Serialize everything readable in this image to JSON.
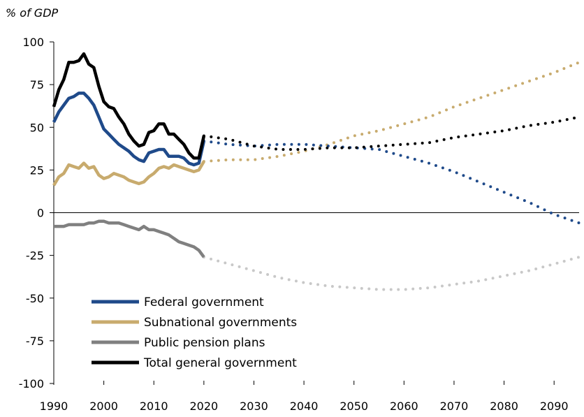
{
  "colors": {
    "federal": "#1f4a8a",
    "subnational": "#c8ab6e",
    "pension": "#808080",
    "pension_projection": "#c8c8c8",
    "total": "#000000",
    "axis": "#000000"
  },
  "chart_data": {
    "type": "line",
    "unit_label": "% of GDP",
    "xlim": [
      1990,
      2095
    ],
    "ylim": [
      -100,
      100
    ],
    "x_ticks": [
      1990,
      2000,
      2010,
      2020,
      2030,
      2040,
      2050,
      2060,
      2070,
      2080,
      2090
    ],
    "y_ticks": [
      100,
      75,
      50,
      25,
      0,
      -25,
      -50,
      -75,
      -100
    ],
    "legend_position": "bottom-left",
    "grid": false,
    "series": [
      {
        "key": "federal",
        "name": "Federal government",
        "historical": [
          [
            1990,
            53
          ],
          [
            1991,
            59
          ],
          [
            1992,
            63
          ],
          [
            1993,
            67
          ],
          [
            1994,
            68
          ],
          [
            1995,
            70
          ],
          [
            1996,
            70
          ],
          [
            1997,
            67
          ],
          [
            1998,
            63
          ],
          [
            1999,
            56
          ],
          [
            2000,
            49
          ],
          [
            2001,
            46
          ],
          [
            2002,
            43
          ],
          [
            2003,
            40
          ],
          [
            2004,
            38
          ],
          [
            2005,
            36
          ],
          [
            2006,
            33
          ],
          [
            2007,
            31
          ],
          [
            2008,
            30
          ],
          [
            2009,
            35
          ],
          [
            2010,
            36
          ],
          [
            2011,
            37
          ],
          [
            2012,
            37
          ],
          [
            2013,
            33
          ],
          [
            2014,
            33
          ],
          [
            2015,
            33
          ],
          [
            2016,
            32
          ],
          [
            2017,
            29
          ],
          [
            2018,
            28
          ],
          [
            2019,
            29
          ],
          [
            2020,
            42
          ]
        ],
        "projection": [
          [
            2020,
            42
          ],
          [
            2025,
            40
          ],
          [
            2030,
            39
          ],
          [
            2035,
            40
          ],
          [
            2040,
            40
          ],
          [
            2045,
            39
          ],
          [
            2050,
            38
          ],
          [
            2055,
            37
          ],
          [
            2060,
            33
          ],
          [
            2065,
            29
          ],
          [
            2070,
            24
          ],
          [
            2075,
            18
          ],
          [
            2080,
            12
          ],
          [
            2085,
            6
          ],
          [
            2090,
            -1
          ],
          [
            2095,
            -6
          ]
        ]
      },
      {
        "key": "subnational",
        "name": "Subnational governments",
        "historical": [
          [
            1990,
            16
          ],
          [
            1991,
            21
          ],
          [
            1992,
            23
          ],
          [
            1993,
            28
          ],
          [
            1994,
            27
          ],
          [
            1995,
            26
          ],
          [
            1996,
            29
          ],
          [
            1997,
            26
          ],
          [
            1998,
            27
          ],
          [
            1999,
            22
          ],
          [
            2000,
            20
          ],
          [
            2001,
            21
          ],
          [
            2002,
            23
          ],
          [
            2003,
            22
          ],
          [
            2004,
            21
          ],
          [
            2005,
            19
          ],
          [
            2006,
            18
          ],
          [
            2007,
            17
          ],
          [
            2008,
            18
          ],
          [
            2009,
            21
          ],
          [
            2010,
            23
          ],
          [
            2011,
            26
          ],
          [
            2012,
            27
          ],
          [
            2013,
            26
          ],
          [
            2014,
            28
          ],
          [
            2015,
            27
          ],
          [
            2016,
            26
          ],
          [
            2017,
            25
          ],
          [
            2018,
            24
          ],
          [
            2019,
            25
          ],
          [
            2020,
            30
          ]
        ],
        "projection": [
          [
            2020,
            30
          ],
          [
            2025,
            31
          ],
          [
            2030,
            31
          ],
          [
            2035,
            33
          ],
          [
            2040,
            36
          ],
          [
            2045,
            40
          ],
          [
            2050,
            45
          ],
          [
            2055,
            48
          ],
          [
            2060,
            52
          ],
          [
            2065,
            56
          ],
          [
            2070,
            62
          ],
          [
            2075,
            67
          ],
          [
            2080,
            72
          ],
          [
            2085,
            77
          ],
          [
            2090,
            82
          ],
          [
            2095,
            88
          ]
        ]
      },
      {
        "key": "pension",
        "name": "Public pension plans",
        "historical": [
          [
            1990,
            -8
          ],
          [
            1991,
            -8
          ],
          [
            1992,
            -8
          ],
          [
            1993,
            -7
          ],
          [
            1994,
            -7
          ],
          [
            1995,
            -7
          ],
          [
            1996,
            -7
          ],
          [
            1997,
            -6
          ],
          [
            1998,
            -6
          ],
          [
            1999,
            -5
          ],
          [
            2000,
            -5
          ],
          [
            2001,
            -6
          ],
          [
            2002,
            -6
          ],
          [
            2003,
            -6
          ],
          [
            2004,
            -7
          ],
          [
            2005,
            -8
          ],
          [
            2006,
            -9
          ],
          [
            2007,
            -10
          ],
          [
            2008,
            -8
          ],
          [
            2009,
            -10
          ],
          [
            2010,
            -10
          ],
          [
            2011,
            -11
          ],
          [
            2012,
            -12
          ],
          [
            2013,
            -13
          ],
          [
            2014,
            -15
          ],
          [
            2015,
            -17
          ],
          [
            2016,
            -18
          ],
          [
            2017,
            -19
          ],
          [
            2018,
            -20
          ],
          [
            2019,
            -22
          ],
          [
            2020,
            -26
          ]
        ],
        "projection": [
          [
            2020,
            -26
          ],
          [
            2025,
            -30
          ],
          [
            2030,
            -34
          ],
          [
            2035,
            -38
          ],
          [
            2040,
            -41
          ],
          [
            2045,
            -43
          ],
          [
            2050,
            -44
          ],
          [
            2055,
            -45
          ],
          [
            2060,
            -45
          ],
          [
            2065,
            -44
          ],
          [
            2070,
            -42
          ],
          [
            2075,
            -40
          ],
          [
            2080,
            -37
          ],
          [
            2085,
            -34
          ],
          [
            2090,
            -30
          ],
          [
            2095,
            -26
          ]
        ]
      },
      {
        "key": "total",
        "name": "Total general government",
        "historical": [
          [
            1990,
            62
          ],
          [
            1991,
            72
          ],
          [
            1992,
            78
          ],
          [
            1993,
            88
          ],
          [
            1994,
            88
          ],
          [
            1995,
            89
          ],
          [
            1996,
            93
          ],
          [
            1997,
            87
          ],
          [
            1998,
            85
          ],
          [
            1999,
            74
          ],
          [
            2000,
            65
          ],
          [
            2001,
            62
          ],
          [
            2002,
            61
          ],
          [
            2003,
            56
          ],
          [
            2004,
            52
          ],
          [
            2005,
            46
          ],
          [
            2006,
            42
          ],
          [
            2007,
            39
          ],
          [
            2008,
            40
          ],
          [
            2009,
            47
          ],
          [
            2010,
            48
          ],
          [
            2011,
            52
          ],
          [
            2012,
            52
          ],
          [
            2013,
            46
          ],
          [
            2014,
            46
          ],
          [
            2015,
            43
          ],
          [
            2016,
            40
          ],
          [
            2017,
            35
          ],
          [
            2018,
            32
          ],
          [
            2019,
            32
          ],
          [
            2020,
            45
          ]
        ],
        "projection": [
          [
            2020,
            45
          ],
          [
            2025,
            43
          ],
          [
            2030,
            39
          ],
          [
            2035,
            37
          ],
          [
            2040,
            37
          ],
          [
            2045,
            38
          ],
          [
            2050,
            38
          ],
          [
            2055,
            39
          ],
          [
            2060,
            40
          ],
          [
            2065,
            41
          ],
          [
            2070,
            44
          ],
          [
            2075,
            46
          ],
          [
            2080,
            48
          ],
          [
            2085,
            51
          ],
          [
            2090,
            53
          ],
          [
            2095,
            56
          ]
        ]
      }
    ]
  }
}
